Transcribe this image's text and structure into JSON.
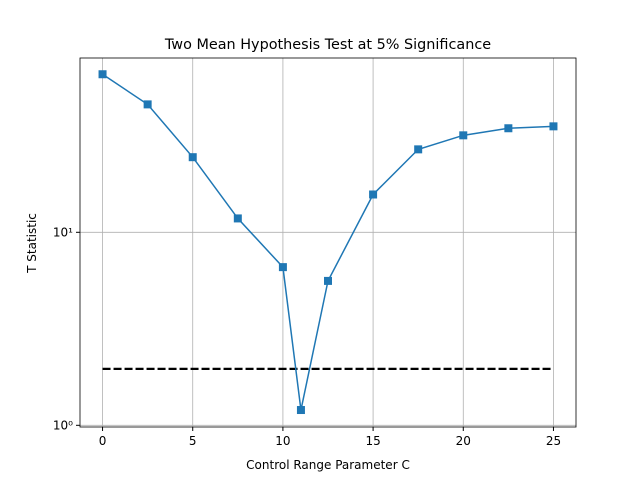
{
  "chart_data": {
    "type": "line",
    "title": "Two Mean Hypothesis Test at 5% Significance",
    "x_label": "Control Range Parameter C",
    "y_label": "T Statistic",
    "x": [
      0,
      2.5,
      5,
      7.5,
      10,
      11,
      12.5,
      15,
      17.5,
      20,
      22.5,
      25
    ],
    "series": [
      {
        "color": "#1f77b4",
        "marker": "square",
        "values": [
          65.9,
          46.0,
          24.5,
          11.8,
          6.6,
          1.2,
          5.6,
          15.7,
          26.9,
          31.8,
          34.6,
          35.4
        ]
      }
    ],
    "reference_line": {
      "x": [
        0,
        25
      ],
      "values": [
        1.96,
        1.96
      ],
      "color": "#000000",
      "dashed": true
    },
    "xlim": [
      -1.25,
      26.25
    ],
    "ylim": [
      0.98,
      80
    ],
    "xticks": [
      0,
      5,
      10,
      15,
      20,
      25
    ],
    "yticks": [
      {
        "value": 1,
        "label": "10⁰"
      },
      {
        "value": 10,
        "label": "10¹"
      }
    ],
    "y_scale": "log",
    "grid": true
  }
}
